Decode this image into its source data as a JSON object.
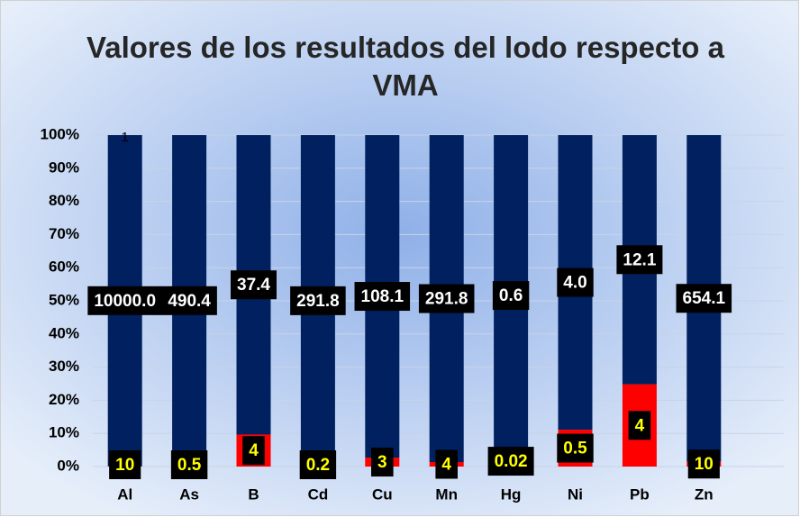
{
  "chart_data": {
    "type": "stacked100",
    "title": "Valores de los resultados del lodo respecto a VMA",
    "categories": [
      "Al",
      "As",
      "B",
      "Cd",
      "Cu",
      "Mn",
      "Hg",
      "Ni",
      "Pb",
      "Zn"
    ],
    "series": [
      {
        "color": "#ff0000",
        "label_color": "#ffff00",
        "values": [
          10,
          0.5,
          4,
          0.2,
          3,
          4,
          0.02,
          0.5,
          4,
          10
        ]
      },
      {
        "color": "#002060",
        "label_color": "#ffffff",
        "values": [
          10000,
          490.4,
          37.4,
          291.8,
          108.1,
          291.8,
          0.6,
          4,
          12.1,
          654.1
        ],
        "value_labels": [
          "10000.0",
          "490.4",
          "37.4",
          "291.8",
          "108.1",
          "291.8",
          "0.6",
          "4.0",
          "12.1",
          "654.1"
        ]
      }
    ],
    "annotation": "1",
    "ylim": [
      0,
      100
    ],
    "yticks": [
      {
        "value": 0,
        "label": "0%"
      },
      {
        "value": 10,
        "label": "10%"
      },
      {
        "value": 20,
        "label": "20%"
      },
      {
        "value": 30,
        "label": "30%"
      },
      {
        "value": 40,
        "label": "40%"
      },
      {
        "value": 50,
        "label": "50%"
      },
      {
        "value": 60,
        "label": "60%"
      },
      {
        "value": 70,
        "label": "70%"
      },
      {
        "value": 80,
        "label": "80%"
      },
      {
        "value": 90,
        "label": "90%"
      },
      {
        "value": 100,
        "label": "100%"
      }
    ],
    "grid": true
  }
}
